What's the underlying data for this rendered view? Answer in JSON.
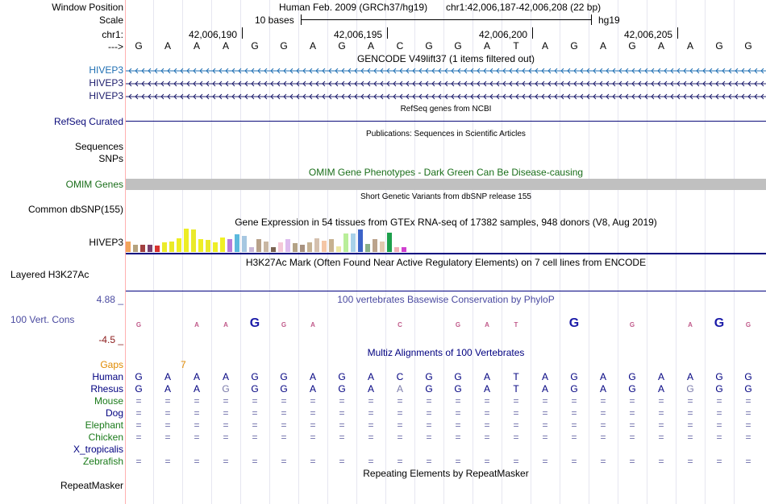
{
  "window_position": {
    "label": "Window Position",
    "assembly": "Human Feb. 2009 (GRCh37/hg19)",
    "region": "chr1:42,006,187-42,006,208 (22 bp)"
  },
  "scale": {
    "label": "Scale",
    "length": "10 bases",
    "assembly": "hg19"
  },
  "coords": {
    "label": "chr1:",
    "arrow_label": "--->",
    "ticks": [
      "42,006,190",
      "42,006,195",
      "42,006,200",
      "42,006,205"
    ]
  },
  "sequence": [
    "G",
    "A",
    "A",
    "A",
    "G",
    "G",
    "A",
    "G",
    "A",
    "C",
    "G",
    "G",
    "A",
    "T",
    "A",
    "G",
    "A",
    "G",
    "A",
    "A",
    "G",
    "G"
  ],
  "tracks": {
    "gencode_title": "GENCODE V49lift37 (1 items filtered out)",
    "gencode_genes": [
      "HIVEP3",
      "HIVEP3",
      "HIVEP3"
    ],
    "refseq_title": "RefSeq genes from NCBI",
    "refseq_label": "RefSeq Curated",
    "publications_title": "Publications: Sequences in Scientific Articles",
    "sequences_label": "Sequences",
    "snps_label": "SNPs",
    "omim_title": "OMIM Gene Phenotypes - Dark Green Can Be Disease-causing",
    "omim_label": "OMIM Genes",
    "dbsnp_title": "Short Genetic Variants from dbSNP release 155",
    "dbsnp_label": "Common dbSNP(155)",
    "gtex_title": "Gene Expression in 54 tissues from GTEx RNA-seq of 17382 samples, 948 donors (V8, Aug 2019)",
    "gtex_label": "HIVEP3",
    "h3k27ac_title": "H3K27Ac Mark (Often Found Near Active Regulatory Elements) on 7 cell lines from ENCODE",
    "h3k27ac_label": "Layered H3K27Ac",
    "phylop_title": "100 vertebrates Basewise Conservation by PhyloP",
    "phylop_label": "100 Vert. Cons",
    "phylop_max": "4.88 _",
    "phylop_min": "-4.5 _",
    "multiz_title": "Multiz Alignments of 100 Vertebrates",
    "gaps_label": "Gaps",
    "gaps_value": "7",
    "repeat_title": "Repeating Elements by RepeatMasker",
    "repeat_label": "RepeatMasker"
  },
  "gtex_expression": [
    {
      "value": 0.45,
      "color": "#f2a35a"
    },
    {
      "value": 0.32,
      "color": "#b5a27d"
    },
    {
      "value": 0.3,
      "color": "#a24141"
    },
    {
      "value": 0.32,
      "color": "#7b3f6e"
    },
    {
      "value": 0.28,
      "color": "#d8342f"
    },
    {
      "value": 0.4,
      "color": "#ebeb2a"
    },
    {
      "value": 0.45,
      "color": "#eaea28"
    },
    {
      "value": 0.6,
      "color": "#eeee22"
    },
    {
      "value": 1.0,
      "color": "#eded25"
    },
    {
      "value": 0.95,
      "color": "#eaea2b"
    },
    {
      "value": 0.55,
      "color": "#efef24"
    },
    {
      "value": 0.52,
      "color": "#e9e92a"
    },
    {
      "value": 0.4,
      "color": "#eeee26"
    },
    {
      "value": 0.62,
      "color": "#f0f025"
    },
    {
      "value": 0.55,
      "color": "#b77bda"
    },
    {
      "value": 0.75,
      "color": "#5bb9dd"
    },
    {
      "value": 0.7,
      "color": "#a6c7e1"
    },
    {
      "value": 0.22,
      "color": "#c9b7d7"
    },
    {
      "value": 0.55,
      "color": "#b7a189"
    },
    {
      "value": 0.45,
      "color": "#c8b6a2"
    },
    {
      "value": 0.22,
      "color": "#7a6452"
    },
    {
      "value": 0.4,
      "color": "#f4c8d8"
    },
    {
      "value": 0.55,
      "color": "#ddbbee"
    },
    {
      "value": 0.38,
      "color": "#b3a286"
    },
    {
      "value": 0.3,
      "color": "#a89280"
    },
    {
      "value": 0.4,
      "color": "#c6b294"
    },
    {
      "value": 0.6,
      "color": "#d4c0ae"
    },
    {
      "value": 0.48,
      "color": "#f4c6a6"
    },
    {
      "value": 0.55,
      "color": "#c7b190"
    },
    {
      "value": 0.25,
      "color": "#ece7a2"
    },
    {
      "value": 0.8,
      "color": "#b9ee99"
    },
    {
      "value": 0.78,
      "color": "#a8d1e9"
    },
    {
      "value": 0.95,
      "color": "#3c63c8"
    },
    {
      "value": 0.35,
      "color": "#89b088"
    },
    {
      "value": 0.55,
      "color": "#bba38c"
    },
    {
      "value": 0.45,
      "color": "#e4c9b0"
    },
    {
      "value": 0.82,
      "color": "#1ea04c"
    },
    {
      "value": 0.2,
      "color": "#f0b0b8"
    },
    {
      "value": 0.22,
      "color": "#d040d0"
    }
  ],
  "multiz": {
    "rows": [
      {
        "species": "Human",
        "color": "#000080",
        "bases": [
          "G",
          "A",
          "A",
          "A",
          "G",
          "G",
          "A",
          "G",
          "A",
          "C",
          "G",
          "G",
          "A",
          "T",
          "A",
          "G",
          "A",
          "G",
          "A",
          "A",
          "G",
          "G"
        ]
      },
      {
        "species": "Rhesus",
        "color": "#000080",
        "bases": [
          "G",
          "A",
          "A",
          "G",
          "G",
          "G",
          "A",
          "G",
          "A",
          "A",
          "G",
          "G",
          "A",
          "T",
          "A",
          "G",
          "A",
          "G",
          "A",
          "G",
          "G",
          "G"
        ],
        "mismatch_color": "#7a7aaa",
        "mismatches": [
          3,
          9,
          19
        ]
      },
      {
        "species": "Mouse",
        "color": "#1a7a1a",
        "bases": [
          "=",
          "=",
          "=",
          "=",
          "=",
          "=",
          "=",
          "=",
          "=",
          "=",
          "=",
          "=",
          "=",
          "=",
          "=",
          "=",
          "=",
          "=",
          "=",
          "=",
          "=",
          "="
        ]
      },
      {
        "species": "Dog",
        "color": "#000080",
        "bases": [
          "=",
          "=",
          "=",
          "=",
          "=",
          "=",
          "=",
          "=",
          "=",
          "=",
          "=",
          "=",
          "=",
          "=",
          "=",
          "=",
          "=",
          "=",
          "=",
          "=",
          "=",
          "="
        ]
      },
      {
        "species": "Elephant",
        "color": "#1a7a1a",
        "bases": [
          "=",
          "=",
          "=",
          "=",
          "=",
          "=",
          "=",
          "=",
          "=",
          "=",
          "=",
          "=",
          "=",
          "=",
          "=",
          "=",
          "=",
          "=",
          "=",
          "=",
          "=",
          "="
        ]
      },
      {
        "species": "Chicken",
        "color": "#1a7a1a",
        "bases": [
          "=",
          "=",
          "=",
          "=",
          "=",
          "=",
          "=",
          "=",
          "=",
          "=",
          "=",
          "=",
          "=",
          "=",
          "=",
          "=",
          "=",
          "=",
          "=",
          "=",
          "=",
          "="
        ]
      },
      {
        "species": "X_tropicalis",
        "color": "#000080",
        "bases": []
      },
      {
        "species": "Zebrafish",
        "color": "#1a7a1a",
        "bases": [
          "=",
          "=",
          "=",
          "=",
          "=",
          "=",
          "=",
          "=",
          "=",
          "=",
          "=",
          "=",
          "=",
          "=",
          "=",
          "=",
          "=",
          "=",
          "=",
          "=",
          "=",
          "="
        ]
      }
    ]
  },
  "colors": {
    "gencode": "#1f6fb3",
    "gene_dark": "#1c1c6c",
    "refseq": "#0b0b7a",
    "omim": "#1a6e1a",
    "phylop": "#4a4aa0",
    "phylop_min": "#8b1a1a",
    "gaps": "#e08a00",
    "divider": "#ffb0b0"
  }
}
